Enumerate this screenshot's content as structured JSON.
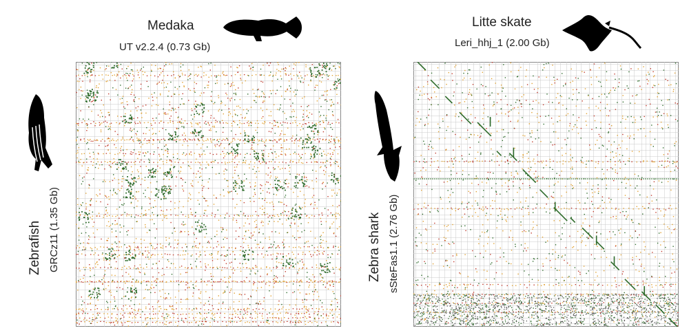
{
  "panels": [
    {
      "top_species": "Medaka",
      "top_assembly": "UT v2.2.4 (0.73 Gb)",
      "left_species": "Zebrafish",
      "left_assembly": "GRCz11 (1.35 Gb)",
      "top_icon": "medaka-silhouette-icon",
      "left_icon": "zebrafish-silhouette-icon",
      "pattern": "scattered"
    },
    {
      "top_species": "Litte skate",
      "top_assembly": "Leri_hhj_1 (2.00 Gb)",
      "left_species": "Zebra shark",
      "left_assembly": "sSteFas1.1 (2.76 Gb)",
      "top_icon": "skate-silhouette-icon",
      "left_icon": "zebra-shark-silhouette-icon",
      "pattern": "diagonal"
    }
  ],
  "colors": {
    "dark_green": "#2e6b2b",
    "orange": "#e0a030",
    "red": "#c0392b",
    "grid": "#c8c8c8",
    "silhouette": "#000000"
  }
}
